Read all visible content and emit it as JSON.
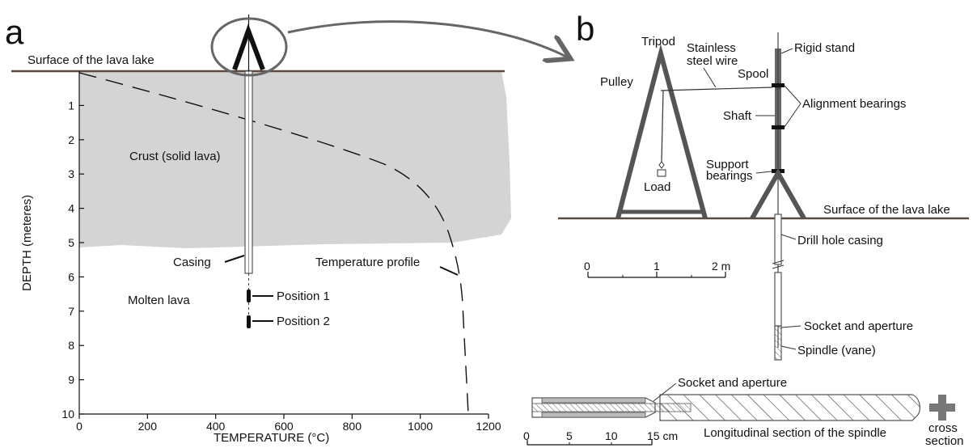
{
  "panel_a": {
    "letter": "a",
    "surface_label": "Surface of the lava lake",
    "crust_label": "Crust (solid lava)",
    "molten_label": "Molten lava",
    "casing_label": "Casing",
    "temp_profile_label": "Temperature profile",
    "position1_label": "Position 1",
    "position2_label": "Position 2",
    "y_axis_label": "DEPTH (meteres)",
    "x_axis_label": "TEMPERATURE (°C)",
    "y_ticks": [
      "1",
      "2",
      "3",
      "4",
      "5",
      "6",
      "7",
      "8",
      "9",
      "10"
    ],
    "x_ticks": [
      "0",
      "200",
      "400",
      "600",
      "800",
      "1000",
      "1200"
    ]
  },
  "panel_b": {
    "letter": "b",
    "tripod_label": "Tripod",
    "wire_label_1": "Stainless",
    "wire_label_2": "steel wire",
    "rigid_stand_label": "Rigid stand",
    "pulley_label": "Pulley",
    "spool_label": "Spool",
    "alignment_label": "Alignment bearings",
    "shaft_label": "Shaft",
    "support_label_1": "Support",
    "support_label_2": "bearings",
    "load_label": "Load",
    "surface_label": "Surface of the lava lake",
    "drill_casing_label": "Drill hole casing",
    "scale_ticks": [
      "0",
      "1",
      "2 m"
    ],
    "socket_label": "Socket and aperture",
    "spindle_label": "Spindle (vane)"
  },
  "spindle_section": {
    "socket_label": "Socket and aperture",
    "longitudinal_label": "Longitudinal section of the spindle",
    "cross_label_1": "cross",
    "cross_label_2": "section",
    "scale_ticks": [
      "0",
      "5",
      "10",
      "15 cm"
    ]
  },
  "colors": {
    "crust": "#d4d4d4",
    "surface": "#5a4a42",
    "frame": "#555555",
    "ink": "#111111"
  }
}
